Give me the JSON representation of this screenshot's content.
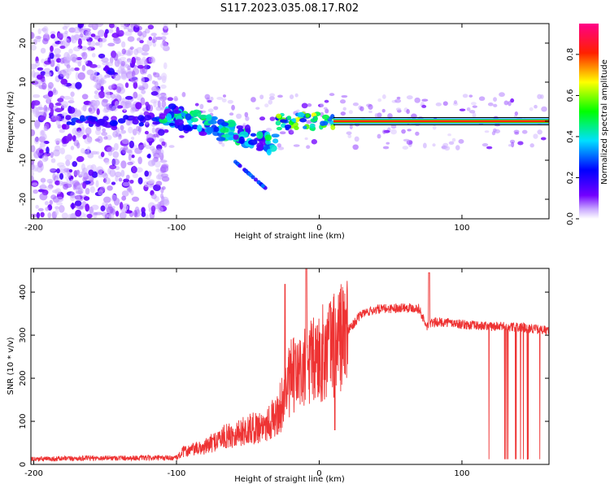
{
  "title": "S117.2023.035.08.17.R02",
  "chart_data": [
    {
      "type": "heatmap",
      "title": "S117.2023.035.08.17.R02",
      "xlabel": "Height of straight line (km)",
      "ylabel": "Frequency (Hz)",
      "xlim": [
        -202,
        161
      ],
      "ylim": [
        -25,
        25
      ],
      "xticks": [
        -200,
        -100,
        0,
        100
      ],
      "yticks": [
        -20,
        -10,
        0,
        10,
        20
      ],
      "grid": false,
      "colorbar": {
        "label": "Normalized spectral amplitude",
        "range": [
          0,
          0.95
        ],
        "ticks": [
          0.0,
          0.2,
          0.4,
          0.6,
          0.8
        ],
        "colormap": [
          "#ffffff",
          "#7300ff",
          "#0000ff",
          "#00ffff",
          "#00ff00",
          "#ffff00",
          "#ff0000",
          "#ff0080"
        ]
      },
      "features": [
        {
          "name": "line",
          "x": [
            10,
            161
          ],
          "y": [
            0,
            0
          ],
          "amplitude": 0.85
        },
        {
          "name": "oblique",
          "x": [
            -110,
            -30
          ],
          "y": [
            2,
            -6
          ],
          "amplitude": 0.35
        },
        {
          "name": "cluster",
          "x": [
            -30,
            10
          ],
          "y": [
            -2,
            2
          ],
          "amplitude": 0.6
        }
      ]
    },
    {
      "type": "line",
      "xlabel": "Height of straight line (km)",
      "ylabel": "SNR (10 * v/v)",
      "xlim": [
        -202,
        161
      ],
      "ylim": [
        0,
        455
      ],
      "xticks": [
        -200,
        -100,
        0,
        100
      ],
      "yticks": [
        0,
        100,
        200,
        300,
        400
      ],
      "grid": false,
      "color": "#ee3333",
      "series": [
        {
          "x": [
            -202,
            -150,
            -100,
            -95,
            -80,
            -70,
            -60,
            -50,
            -40,
            -30,
            -25,
            -20,
            -10,
            0,
            10,
            20,
            30,
            40,
            50,
            60,
            70,
            75,
            80,
            90,
            100,
            110,
            120,
            130,
            140,
            150,
            161
          ],
          "values": [
            12,
            15,
            15,
            30,
            40,
            60,
            70,
            80,
            90,
            110,
            150,
            200,
            220,
            250,
            280,
            310,
            350,
            360,
            362,
            365,
            362,
            320,
            330,
            330,
            325,
            322,
            320,
            320,
            318,
            315,
            310
          ]
        }
      ]
    }
  ]
}
